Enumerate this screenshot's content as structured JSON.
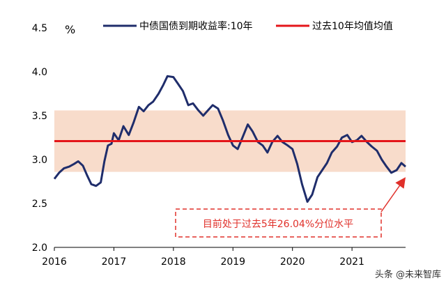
{
  "chart_data": {
    "type": "line",
    "unit": "%",
    "x_ticks": [
      "2016",
      "2017",
      "2018",
      "2019",
      "2020",
      "2021"
    ],
    "y_ticks": [
      "2.0",
      "2.5",
      "3.0",
      "3.5",
      "4.0",
      "4.5"
    ],
    "ylim": [
      2.0,
      4.5
    ],
    "xlim": [
      2016.0,
      2021.9
    ],
    "band": {
      "from": 2.86,
      "to": 3.56,
      "color": "#f8dccb"
    },
    "legend_position": "top",
    "series": [
      {
        "name": "中债国债到期收益率:10年",
        "color": "#1f2d6b",
        "x": [
          2016.0,
          2016.08,
          2016.16,
          2016.25,
          2016.33,
          2016.4,
          2016.48,
          2016.55,
          2016.62,
          2016.7,
          2016.78,
          2016.84,
          2016.9,
          2016.96,
          2017.0,
          2017.08,
          2017.16,
          2017.25,
          2017.33,
          2017.42,
          2017.5,
          2017.58,
          2017.66,
          2017.75,
          2017.83,
          2017.9,
          2018.0,
          2018.08,
          2018.16,
          2018.25,
          2018.33,
          2018.42,
          2018.5,
          2018.58,
          2018.66,
          2018.75,
          2018.83,
          2018.92,
          2019.0,
          2019.08,
          2019.16,
          2019.25,
          2019.33,
          2019.42,
          2019.5,
          2019.58,
          2019.66,
          2019.75,
          2019.83,
          2019.92,
          2020.0,
          2020.08,
          2020.16,
          2020.25,
          2020.33,
          2020.42,
          2020.5,
          2020.58,
          2020.66,
          2020.75,
          2020.83,
          2020.92,
          2021.0,
          2021.08,
          2021.16,
          2021.25,
          2021.33,
          2021.42,
          2021.5,
          2021.58,
          2021.66,
          2021.75,
          2021.83,
          2021.9
        ],
        "values": [
          2.78,
          2.85,
          2.9,
          2.92,
          2.95,
          2.98,
          2.93,
          2.82,
          2.72,
          2.7,
          2.74,
          2.98,
          3.16,
          3.18,
          3.3,
          3.22,
          3.38,
          3.28,
          3.42,
          3.6,
          3.55,
          3.62,
          3.66,
          3.75,
          3.85,
          3.95,
          3.94,
          3.86,
          3.78,
          3.62,
          3.64,
          3.56,
          3.5,
          3.56,
          3.62,
          3.58,
          3.45,
          3.28,
          3.16,
          3.12,
          3.25,
          3.4,
          3.32,
          3.2,
          3.16,
          3.08,
          3.2,
          3.27,
          3.2,
          3.16,
          3.12,
          2.95,
          2.72,
          2.52,
          2.6,
          2.8,
          2.88,
          2.96,
          3.08,
          3.15,
          3.25,
          3.28,
          3.2,
          3.22,
          3.27,
          3.2,
          3.15,
          3.1,
          3.0,
          2.92,
          2.85,
          2.88,
          2.96,
          2.92
        ]
      },
      {
        "name": "过去10年均值均值",
        "color": "#e4161a",
        "x": [
          2016.0,
          2021.9
        ],
        "values": [
          3.21,
          3.21
        ]
      }
    ],
    "annotation": {
      "text": "目前处于过去5年26.04%分位水平",
      "color": "#e0302a",
      "arrow_to": {
        "x": 2021.88,
        "y": 2.78
      }
    }
  },
  "watermark": "头条 @未来智库"
}
